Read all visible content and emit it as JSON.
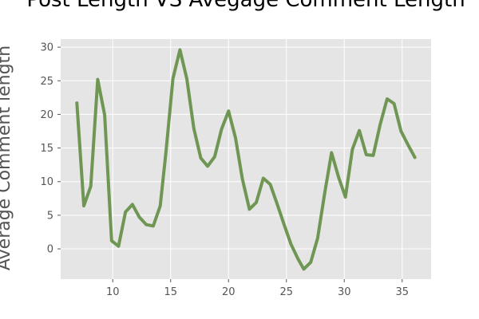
{
  "chart_data": {
    "type": "line",
    "title": "Post Length VS Avegage Comment Length",
    "xlabel": "",
    "ylabel": "Average Comment length",
    "xlim": [
      5.5,
      37.5
    ],
    "ylim": [
      -4.5,
      31.2
    ],
    "xticks": [
      10,
      15,
      20,
      25,
      30,
      35
    ],
    "yticks": [
      0,
      5,
      10,
      15,
      20,
      25,
      30
    ],
    "grid": true,
    "line_color": "#6f9653",
    "plot_background": "#e5e5e5",
    "grid_color": "#ffffff",
    "series": [
      {
        "x": [
          6.9,
          7.5,
          8.1,
          8.7,
          9.3,
          9.9,
          10.5,
          11.1,
          11.7,
          12.3,
          12.9,
          13.5,
          14.1,
          14.6,
          15.2,
          15.8,
          16.4,
          17.0,
          17.6,
          18.2,
          18.8,
          19.4,
          20.0,
          20.6,
          21.2,
          21.8,
          22.4,
          23.0,
          23.6,
          24.2,
          24.8,
          25.4,
          26.0,
          26.5,
          27.1,
          27.7,
          28.3,
          28.9,
          29.5,
          30.1,
          30.7,
          31.3,
          31.9,
          32.5,
          33.1,
          33.7,
          34.3,
          34.9,
          35.5,
          36.1
        ],
        "y": [
          21.7,
          6.4,
          9.3,
          25.2,
          19.9,
          1.2,
          0.4,
          5.5,
          6.6,
          4.7,
          3.6,
          3.4,
          6.4,
          14.4,
          25.3,
          29.6,
          25.3,
          17.9,
          13.5,
          12.3,
          13.7,
          17.8,
          20.5,
          16.5,
          10.4,
          5.9,
          6.9,
          10.5,
          9.6,
          6.7,
          3.6,
          0.7,
          -1.5,
          -3.0,
          -2.0,
          1.6,
          8.2,
          14.3,
          10.7,
          7.7,
          14.8,
          17.6,
          14.0,
          13.9,
          18.5,
          22.3,
          21.6,
          17.5,
          15.5,
          13.6
        ]
      }
    ]
  }
}
